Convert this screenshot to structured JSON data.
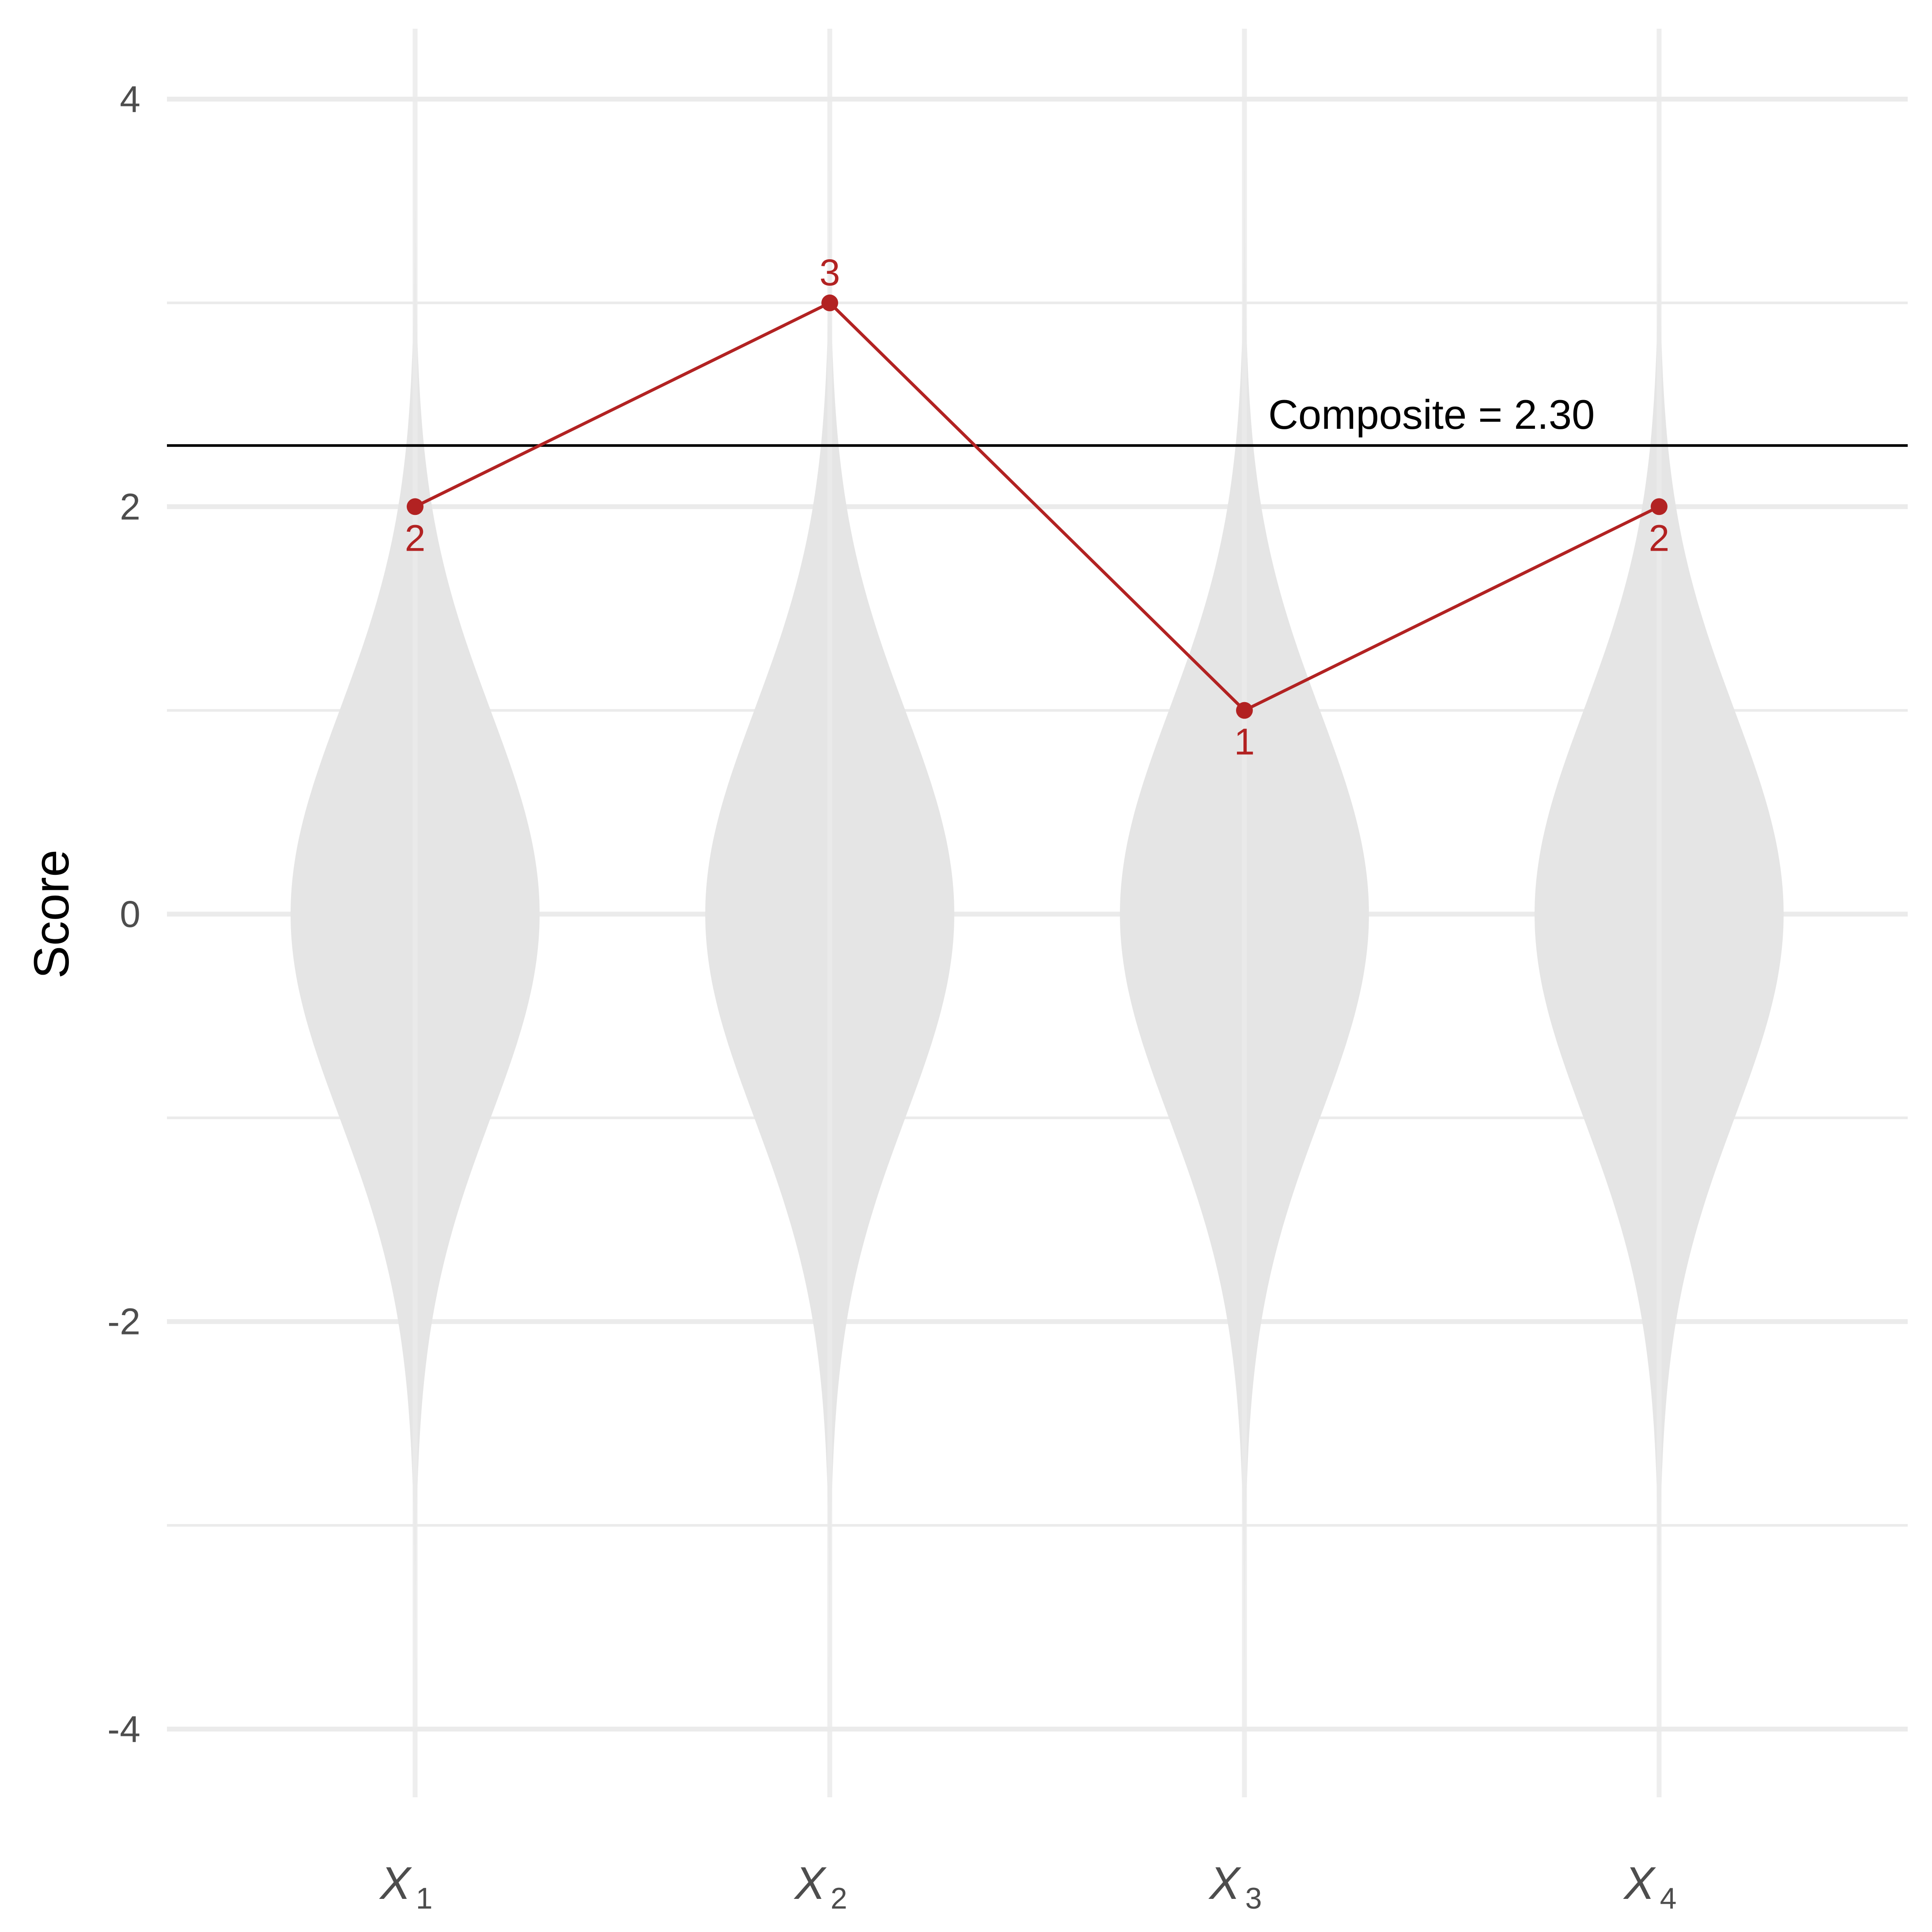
{
  "chart_data": {
    "type": "violin",
    "title": "",
    "xlabel": "",
    "ylabel": "Score",
    "ylim": [
      -4.4,
      4.4
    ],
    "yticks": [
      -4,
      -2,
      0,
      2,
      4
    ],
    "ytick_labels": [
      "-4",
      "-2",
      "0",
      "2",
      "4"
    ],
    "categories": [
      {
        "base": "X",
        "sub": "1"
      },
      {
        "base": "X",
        "sub": "2"
      },
      {
        "base": "X",
        "sub": "3"
      },
      {
        "base": "X",
        "sub": "4"
      }
    ],
    "violins": {
      "distribution": "standard normal",
      "y_range": [
        -4,
        4
      ]
    },
    "points": {
      "values": [
        2,
        3,
        1,
        2
      ],
      "labels": [
        "2",
        "3",
        "1",
        "2"
      ],
      "color": "#b22222"
    },
    "reference_line": {
      "value": 2.3,
      "label": "Composite = 2.30",
      "color": "#000000"
    },
    "violin_color": "#e5e5e5",
    "grid": true,
    "legend": "none"
  }
}
